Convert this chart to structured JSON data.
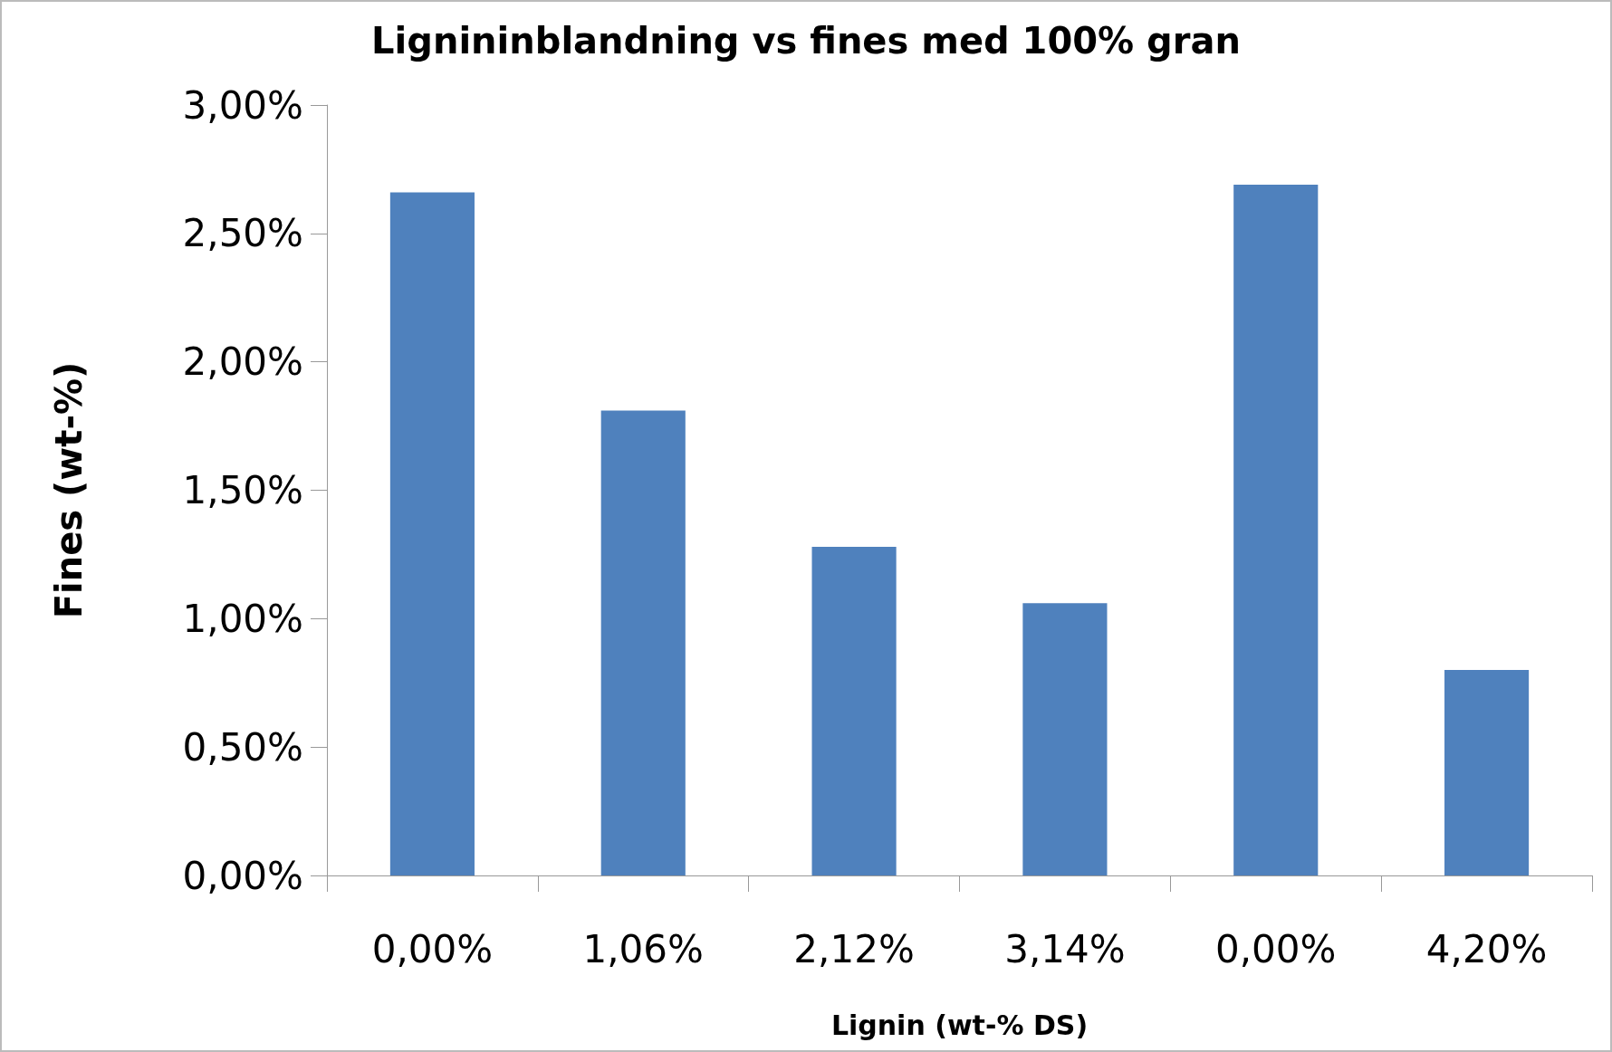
{
  "chart_data": {
    "type": "bar",
    "title": "Lignininblandning vs fines med 100% gran",
    "xlabel": "Lignin (wt-% DS)",
    "ylabel": "Fines (wt-%)",
    "categories": [
      "0,00%",
      "1,06%",
      "2,12%",
      "3,14%",
      "0,00%",
      "4,20%"
    ],
    "values": [
      2.66,
      1.81,
      1.28,
      1.06,
      2.69,
      0.8
    ],
    "color": "#4f81bd",
    "ylim": [
      0,
      3
    ],
    "yticks": [
      {
        "value": 0,
        "label": "0,00%"
      },
      {
        "value": 0.5,
        "label": "0,50%"
      },
      {
        "value": 1,
        "label": "1,00%"
      },
      {
        "value": 1.5,
        "label": "1,50%"
      },
      {
        "value": 2,
        "label": "2,00%"
      },
      {
        "value": 2.5,
        "label": "2,50%"
      },
      {
        "value": 3,
        "label": "3,00%"
      }
    ],
    "grid": false
  }
}
